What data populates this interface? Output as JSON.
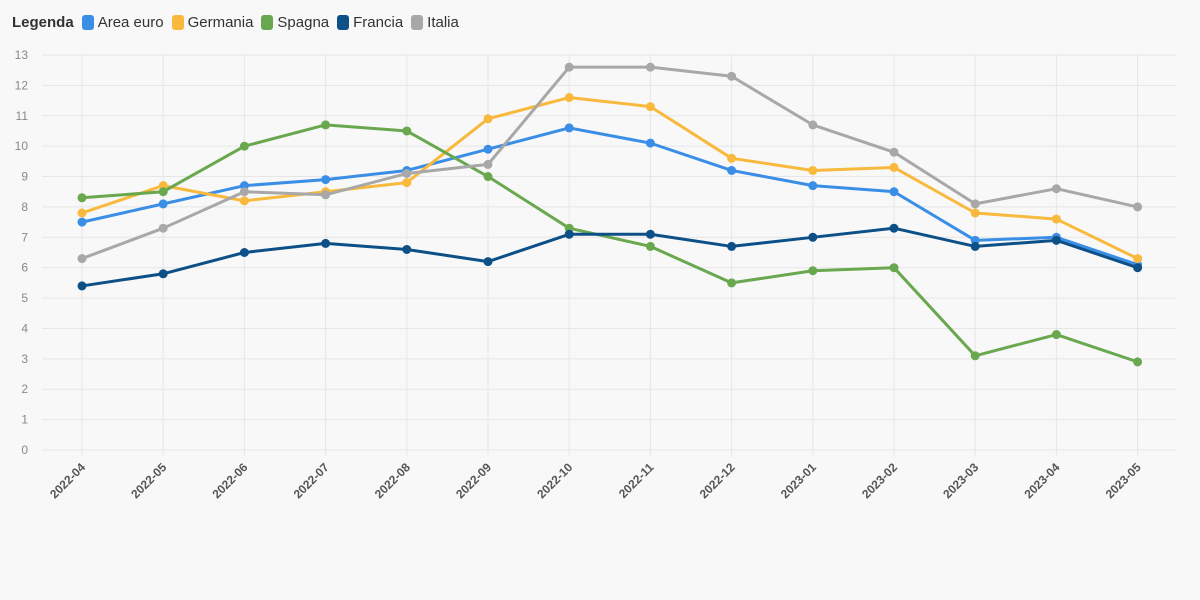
{
  "legend": {
    "title": "Legenda"
  },
  "chart_data": {
    "type": "line",
    "title": "",
    "xlabel": "",
    "ylabel": "",
    "ylim": [
      0,
      13
    ],
    "yticks": [
      0,
      1,
      2,
      3,
      4,
      5,
      6,
      7,
      8,
      9,
      10,
      11,
      12,
      13
    ],
    "grid": true,
    "legend_position": "top-left",
    "categories": [
      "2022-04",
      "2022-05",
      "2022-06",
      "2022-07",
      "2022-08",
      "2022-09",
      "2022-10",
      "2022-11",
      "2022-12",
      "2023-01",
      "2023-02",
      "2023-03",
      "2023-04",
      "2023-05"
    ],
    "series": [
      {
        "name": "Area euro",
        "color": "#3a8ee6",
        "values": [
          7.5,
          8.1,
          8.7,
          8.9,
          9.2,
          9.9,
          10.6,
          10.1,
          9.2,
          8.7,
          8.5,
          6.9,
          7.0,
          6.1
        ]
      },
      {
        "name": "Germania",
        "color": "#f8b93c",
        "values": [
          7.8,
          8.7,
          8.2,
          8.5,
          8.8,
          10.9,
          11.6,
          11.3,
          9.6,
          9.2,
          9.3,
          7.8,
          7.6,
          6.3
        ]
      },
      {
        "name": "Spagna",
        "color": "#6aa84f",
        "values": [
          8.3,
          8.5,
          10.0,
          10.7,
          10.5,
          9.0,
          7.3,
          6.7,
          5.5,
          5.9,
          6.0,
          3.1,
          3.8,
          2.9
        ]
      },
      {
        "name": "Francia",
        "color": "#0d5088",
        "values": [
          5.4,
          5.8,
          6.5,
          6.8,
          6.6,
          6.2,
          7.1,
          7.1,
          6.7,
          7.0,
          7.3,
          6.7,
          6.9,
          6.0
        ]
      },
      {
        "name": "Italia",
        "color": "#a8a8a8",
        "values": [
          6.3,
          7.3,
          8.5,
          8.4,
          9.1,
          9.4,
          12.6,
          12.6,
          12.3,
          10.7,
          9.8,
          8.1,
          8.6,
          8.0
        ]
      }
    ]
  }
}
